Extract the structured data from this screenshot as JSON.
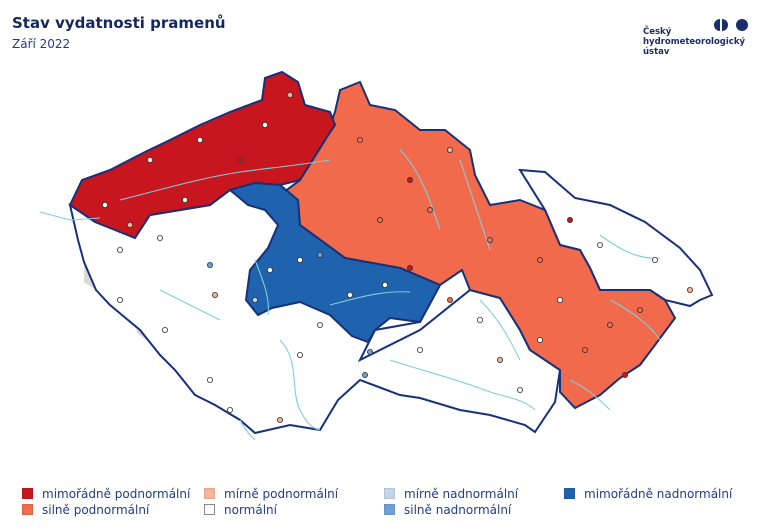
{
  "header": {
    "title": "Stav vydatnosti pramenů",
    "subtitle": "Září 2022"
  },
  "logo": {
    "line1": "Český",
    "line2": "hydrometeorologický",
    "line3": "ústav",
    "color": "#1a2e6b"
  },
  "legend": [
    {
      "label": "mimořádně podnormální",
      "color": "#c8161e"
    },
    {
      "label": "silně podnormální",
      "color": "#f26a4c"
    },
    {
      "label": "mírně podnormální",
      "color": "#f5b49a"
    },
    {
      "label": "normální",
      "color": "#ffffff"
    },
    {
      "label": "mírně nadnormální",
      "color": "#c5d4ea"
    },
    {
      "label": "silně nadnormální",
      "color": "#6fa0d2"
    },
    {
      "label": "mimořádně nadnormální",
      "color": "#1f62ad"
    }
  ],
  "map_colors": {
    "border": "#16307a",
    "river": "#7fcde0",
    "basin_line": "#8a8a8a",
    "outside_gray": "#d9d9d9"
  }
}
